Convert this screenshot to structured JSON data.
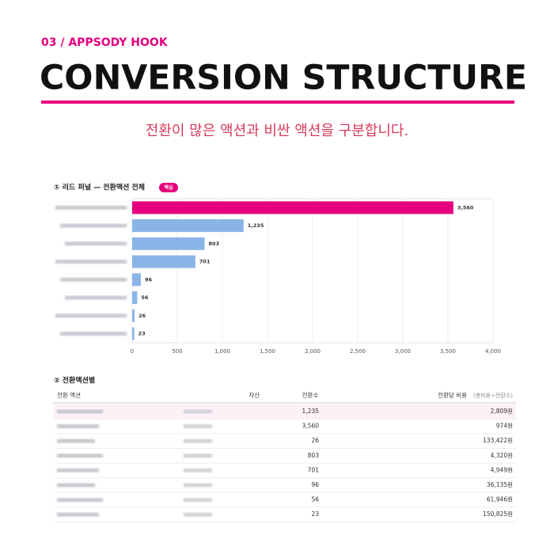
{
  "header": {
    "label": "03 / APPSODY HOOK",
    "title": "CONVERSION STRUCTURE",
    "subtitle": "전환이 많은 액션과 비싼 액션을 구분합니다."
  },
  "chart_data": {
    "type": "hbar",
    "title": "① 리드 퍼널 — 전환액션 전체",
    "badge": "핵심",
    "categories": [
      null,
      null,
      null,
      null,
      null,
      null,
      null,
      null
    ],
    "values": [
      3560,
      1235,
      803,
      701,
      96,
      56,
      26,
      23
    ],
    "value_labels": [
      "3,560",
      "1,235",
      "803",
      "701",
      "96",
      "56",
      "26",
      "23"
    ],
    "colors": [
      "#e6007e",
      "#8ab4e8",
      "#8ab4e8",
      "#8ab4e8",
      "#8ab4e8",
      "#8ab4e8",
      "#8ab4e8",
      "#8ab4e8"
    ],
    "xlim": [
      0,
      4000
    ],
    "xticks": [
      0,
      500,
      {
        "value": 1000,
        "label": "1,000"
      },
      {
        "value": 1500,
        "label": "1,500"
      },
      {
        "value": 2000,
        "label": "2,000"
      },
      {
        "value": 2500,
        "label": "2,500"
      },
      {
        "value": 3000,
        "label": "3,000"
      },
      {
        "value": 3500,
        "label": "3,500"
      },
      {
        "value": 4000,
        "label": "4,000"
      }
    ],
    "grid": true
  },
  "table": {
    "title": "② 전환액션별",
    "columns": [
      "전환 액션",
      "자산",
      "전환수",
      "전환당 비용"
    ],
    "column_note": "(총비용÷전환수)",
    "rows": [
      [
        "1,235",
        "2,809원"
      ],
      [
        "3,560",
        "974원"
      ],
      [
        "26",
        "133,422원"
      ],
      [
        "803",
        "4,320원"
      ],
      [
        "701",
        "4,949원"
      ],
      [
        "96",
        "36,135원"
      ],
      [
        "56",
        "61,946원"
      ],
      [
        "23",
        "150,825원"
      ]
    ]
  }
}
